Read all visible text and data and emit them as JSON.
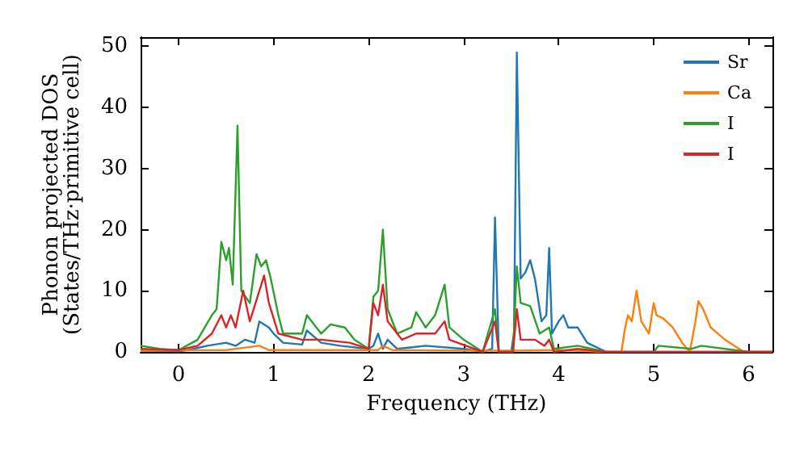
{
  "chart_data": {
    "type": "line",
    "xlabel": "Frequency (THz)",
    "ylabel": "Phonon projected DOS\n(States/THz·primitive cell)",
    "xlim": [
      -0.4,
      6.25
    ],
    "ylim": [
      0,
      51.5
    ],
    "xticks": [
      0,
      1,
      2,
      3,
      4,
      5,
      6
    ],
    "yticks": [
      0,
      10,
      20,
      30,
      40,
      50
    ],
    "grid": false,
    "legend": "top right",
    "series": [
      {
        "name": "Sr",
        "color": "#1f77b4",
        "x": [
          -0.4,
          0,
          0.1,
          0.3,
          0.5,
          0.6,
          0.7,
          0.8,
          0.85,
          0.95,
          1.0,
          1.1,
          1.3,
          1.35,
          1.5,
          1.7,
          2.0,
          2.05,
          2.1,
          2.15,
          2.2,
          2.3,
          2.6,
          3.0,
          3.2,
          3.3,
          3.33,
          3.37,
          3.5,
          3.53,
          3.56,
          3.6,
          3.65,
          3.7,
          3.75,
          3.82,
          3.87,
          3.9,
          3.93,
          4.0,
          4.05,
          4.1,
          4.2,
          4.3,
          4.5,
          6.25
        ],
        "values": [
          0.2,
          0.1,
          0.3,
          1,
          1.5,
          1,
          2,
          1.5,
          5,
          4,
          3,
          1.5,
          1.2,
          3.5,
          1.5,
          1,
          0.5,
          1,
          3,
          0.5,
          2,
          0.5,
          1,
          0.5,
          0,
          0.5,
          22,
          0,
          0,
          3,
          49,
          12,
          13,
          15,
          12,
          5,
          6,
          17,
          3,
          5,
          6,
          4,
          4,
          1.5,
          0,
          0
        ]
      },
      {
        "name": "Ca",
        "color": "#ff7f0e",
        "x": [
          -0.4,
          0.5,
          0.85,
          0.95,
          1.5,
          2.1,
          2.15,
          2.25,
          3.0,
          3.5,
          4.0,
          4.5,
          4.66,
          4.7,
          4.73,
          4.77,
          4.82,
          4.87,
          4.95,
          5.0,
          5.03,
          5.1,
          5.2,
          5.3,
          5.38,
          5.44,
          5.47,
          5.52,
          5.6,
          5.75,
          5.9,
          5.95,
          6.25
        ],
        "values": [
          0.2,
          0.3,
          1,
          0.3,
          0.3,
          0.3,
          1,
          0.3,
          0.2,
          0.2,
          0.3,
          0,
          0,
          4,
          6,
          5,
          10,
          5,
          3,
          8,
          6,
          5.5,
          4,
          1.5,
          0,
          5,
          8.3,
          7,
          4,
          2,
          0.5,
          0,
          0
        ]
      },
      {
        "name": "I",
        "color": "#2ca02c",
        "x": [
          -0.4,
          -0.2,
          0,
          0.2,
          0.35,
          0.4,
          0.45,
          0.5,
          0.53,
          0.57,
          0.62,
          0.66,
          0.75,
          0.82,
          0.87,
          0.92,
          0.97,
          1.05,
          1.1,
          1.3,
          1.35,
          1.5,
          1.6,
          1.75,
          1.85,
          2.0,
          2.05,
          2.1,
          2.15,
          2.2,
          2.3,
          2.45,
          2.5,
          2.6,
          2.7,
          2.8,
          2.85,
          3.0,
          3.2,
          3.33,
          3.37,
          3.52,
          3.56,
          3.6,
          3.7,
          3.8,
          3.9,
          3.95,
          4.2,
          4.5,
          5.0,
          5.05,
          5.4,
          5.5,
          6.0,
          6.25
        ],
        "values": [
          1,
          0.5,
          0.3,
          2,
          6,
          7,
          18,
          15,
          17,
          11,
          37,
          10,
          8,
          16,
          14,
          15,
          12,
          6,
          3,
          3,
          6,
          3,
          4.5,
          4,
          2,
          0.5,
          9,
          10,
          20,
          7,
          3,
          4,
          6.5,
          4,
          6,
          11,
          4,
          2,
          0,
          7,
          0,
          0,
          14,
          8,
          7.5,
          3,
          4,
          0.5,
          1,
          0,
          0,
          1,
          0.5,
          1,
          0,
          0
        ]
      },
      {
        "name": "I",
        "color": "#d62728",
        "x": [
          -0.4,
          0,
          0.2,
          0.35,
          0.45,
          0.5,
          0.55,
          0.6,
          0.68,
          0.75,
          0.9,
          0.95,
          1.05,
          1.3,
          1.5,
          1.8,
          2.0,
          2.05,
          2.1,
          2.15,
          2.2,
          2.35,
          2.5,
          2.6,
          2.7,
          2.8,
          2.85,
          3.2,
          3.33,
          3.37,
          3.52,
          3.56,
          3.6,
          3.75,
          3.85,
          3.9,
          3.95,
          4.2,
          4.5,
          6.25
        ],
        "values": [
          0.5,
          0.3,
          1,
          3,
          6,
          4,
          6,
          4,
          10,
          5,
          12.5,
          8,
          3,
          2,
          2,
          1.5,
          0.5,
          8,
          6,
          11,
          5,
          2,
          3,
          3,
          3,
          5,
          2,
          0,
          5,
          0,
          0,
          7,
          2,
          2,
          1,
          2,
          0,
          0.5,
          0,
          0
        ]
      }
    ]
  }
}
